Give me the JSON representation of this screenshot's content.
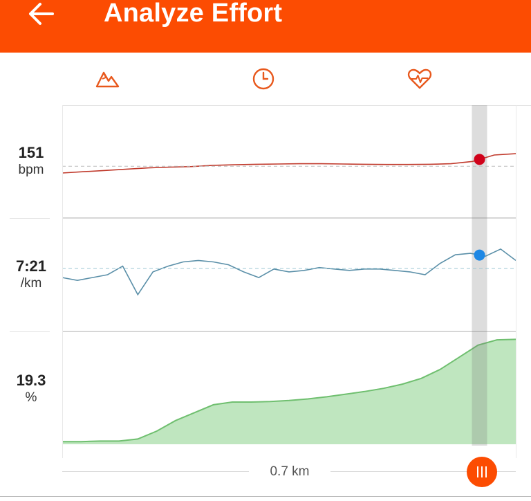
{
  "appbar": {
    "title": "Analyze Effort",
    "back_icon": "arrow-left-icon",
    "background": "#fc4c02"
  },
  "tabs": [
    {
      "icon": "elevation-icon",
      "name": "elevation"
    },
    {
      "icon": "clock-icon",
      "name": "time"
    },
    {
      "icon": "heart-rate-icon",
      "name": "heart-rate"
    }
  ],
  "metrics": {
    "heart_rate": {
      "value": "151",
      "unit": "bpm"
    },
    "pace": {
      "value": "7:21",
      "unit": "/km"
    },
    "grade": {
      "value": "19.3",
      "unit": "%"
    }
  },
  "chart_data": {
    "type": "line",
    "x_label_current": "0.7 km",
    "cursor_position_fraction": 0.92,
    "colors": {
      "heart_rate_line": "#c0392b",
      "heart_rate_dot": "#d0021b",
      "pace_line": "#5a8fa8",
      "pace_dot": "#1e88e5",
      "grade_fill": "#bfe6bf",
      "grade_line": "#6fbf6f"
    },
    "series": [
      {
        "name": "bpm",
        "values": [
          144,
          144.5,
          145,
          145.5,
          146,
          146.3,
          146.5,
          147,
          147.2,
          147.4,
          147.5,
          147.6,
          147.6,
          147.5,
          147.4,
          147.3,
          147.3,
          147.4,
          147.6,
          148.5,
          151,
          151.5
        ]
      },
      {
        "name": "/km",
        "values": [
          8.0,
          8.1,
          8.0,
          7.9,
          7.6,
          8.6,
          7.8,
          7.6,
          7.45,
          7.4,
          7.45,
          7.55,
          7.8,
          8.0,
          7.7,
          7.8,
          7.75,
          7.65,
          7.7,
          7.75,
          7.7,
          7.7,
          7.75,
          7.8,
          7.9,
          7.5,
          7.2,
          7.15,
          7.25,
          7.0,
          7.4
        ]
      },
      {
        "name": "%",
        "values": [
          0.5,
          0.5,
          0.6,
          0.6,
          1.0,
          2.5,
          4.5,
          6.0,
          7.5,
          8.0,
          8.0,
          8.1,
          8.3,
          8.6,
          9.0,
          9.5,
          10.0,
          10.6,
          11.4,
          12.5,
          14.2,
          16.5,
          18.8,
          19.8,
          19.9
        ]
      }
    ]
  }
}
